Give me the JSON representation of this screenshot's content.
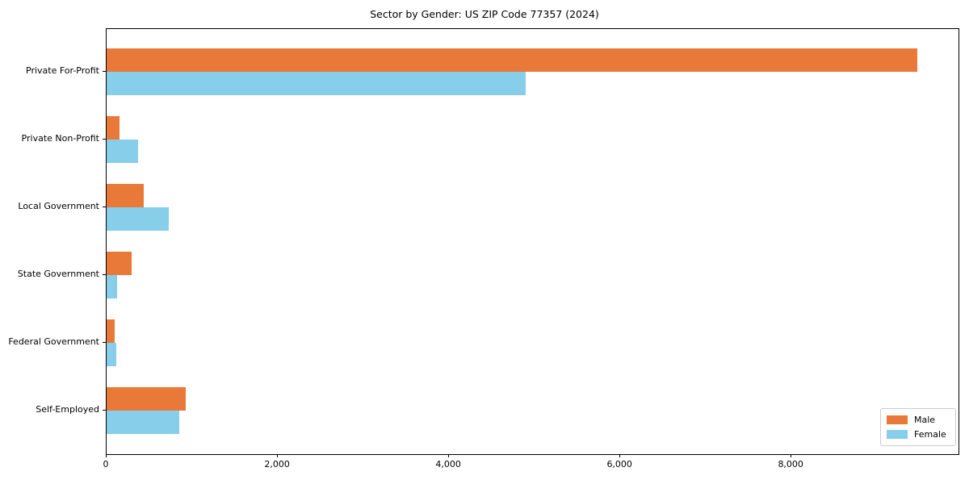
{
  "title": "Sector by Gender: US ZIP Code 77357 (2024)",
  "colors": {
    "male": "#e97938",
    "female": "#87ceeb",
    "spine": "#000000",
    "legend_border": "#cccccc",
    "background": "#ffffff"
  },
  "chart_data": {
    "type": "bar",
    "orientation": "horizontal",
    "title": "Sector by Gender: US ZIP Code 77357 (2024)",
    "categories": [
      "Private For-Profit",
      "Private Non-Profit",
      "Local Government",
      "State Government",
      "Federal Government",
      "Self-Employed"
    ],
    "series": [
      {
        "name": "Male",
        "color": "#e97938",
        "values": [
          9470,
          150,
          435,
          290,
          95,
          925
        ]
      },
      {
        "name": "Female",
        "color": "#87ceeb",
        "values": [
          4890,
          370,
          725,
          125,
          110,
          845
        ]
      }
    ],
    "xlabel": "",
    "ylabel": "",
    "xlim": [
      0,
      9950
    ],
    "xticks": [
      0,
      2000,
      4000,
      6000,
      8000
    ],
    "xtick_labels": [
      "0",
      "2,000",
      "4,000",
      "6,000",
      "8,000"
    ],
    "grid": false,
    "legend": {
      "position": "lower right",
      "entries": [
        "Male",
        "Female"
      ]
    }
  }
}
